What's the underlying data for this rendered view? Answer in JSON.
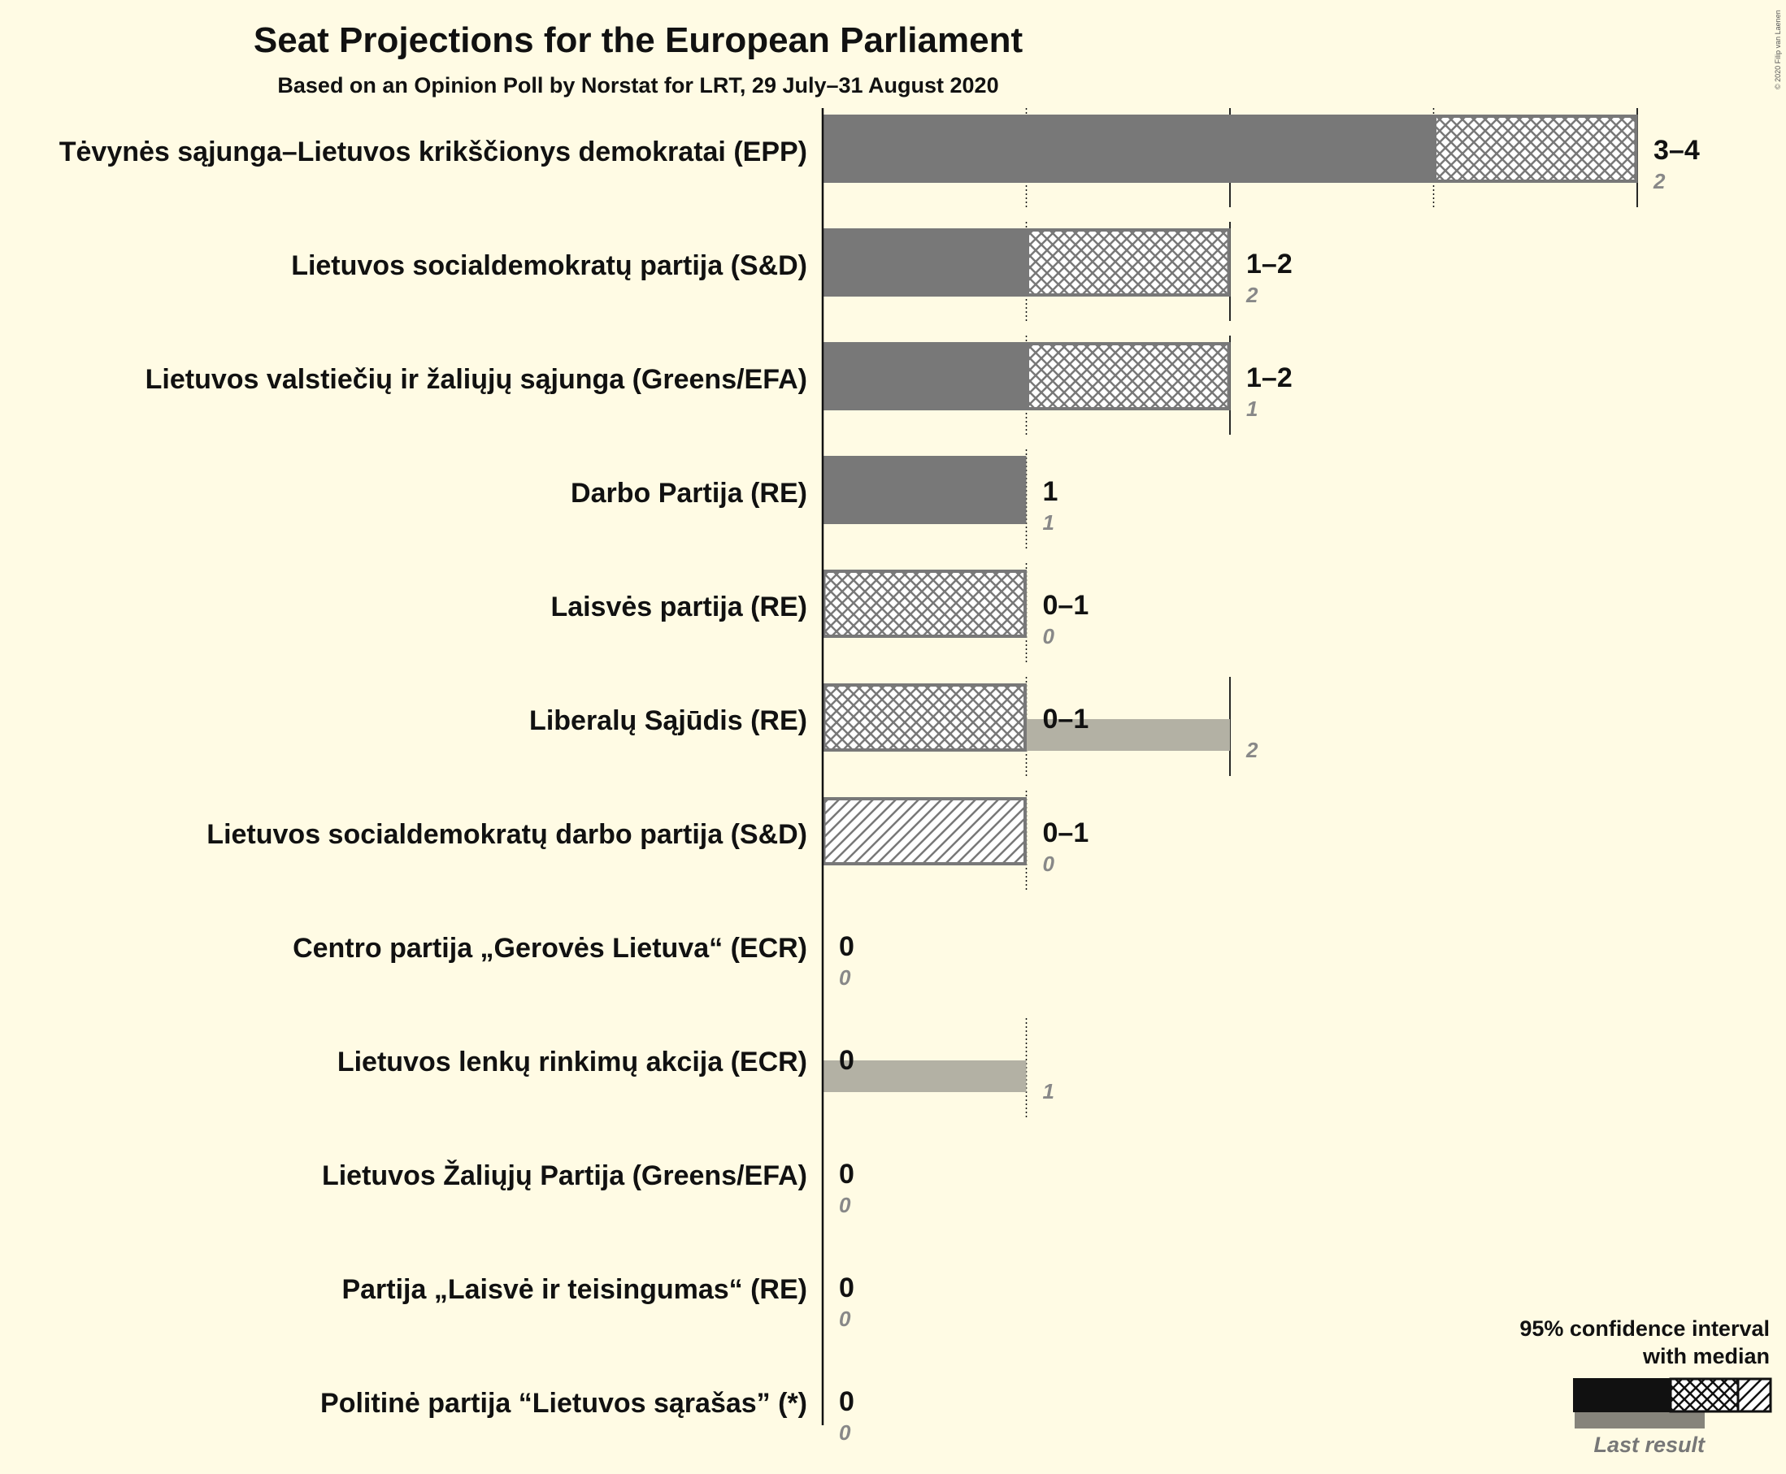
{
  "colors": {
    "background": "#fffbe4",
    "median_bar": "#787878",
    "hatch": "#787878",
    "last_result": "#b3b1a4",
    "legend_bar": "#111111",
    "legend_last": "#86847b"
  },
  "chart_data": {
    "type": "bar",
    "orientation": "horizontal",
    "title": "Seat Projections for the European Parliament",
    "subtitle": "Based on an Opinion Poll by Norstat for LRT, 29 July–31 August 2020",
    "credit": "© 2020 Filip van Laenen",
    "xlim": [
      0,
      4
    ],
    "gridlines": [
      1,
      2,
      3,
      4
    ],
    "series": [
      {
        "name": "Projection range"
      },
      {
        "name": "Last result"
      }
    ],
    "parties": [
      {
        "name": "Tėvynės sąjunga–Lietuvos krikščionys demokratai (EPP)",
        "low": 3,
        "median": 3,
        "high": 4,
        "range_label": "3–4",
        "last": 2,
        "last_label": "2"
      },
      {
        "name": "Lietuvos socialdemokratų partija (S&D)",
        "low": 1,
        "median": 1,
        "high": 2,
        "range_label": "1–2",
        "last": 2,
        "last_label": "2"
      },
      {
        "name": "Lietuvos valstiečių ir žaliųjų sąjunga (Greens/EFA)",
        "low": 1,
        "median": 1,
        "high": 2,
        "range_label": "1–2",
        "last": 1,
        "last_label": "1"
      },
      {
        "name": "Darbo Partija (RE)",
        "low": 1,
        "median": 1,
        "high": 1,
        "range_label": "1",
        "last": 1,
        "last_label": "1"
      },
      {
        "name": "Laisvės partija (RE)",
        "low": 0,
        "median": 0,
        "high": 1,
        "range_label": "0–1",
        "last": 0,
        "last_label": "0"
      },
      {
        "name": "Liberalų Sąjūdis (RE)",
        "low": 0,
        "median": 0,
        "high": 1,
        "range_label": "0–1",
        "last": 2,
        "last_label": "2"
      },
      {
        "name": "Lietuvos socialdemokratų darbo partija (S&D)",
        "low": 0,
        "median": 0,
        "high": 1,
        "upper_only": true,
        "range_label": "0–1",
        "last": 0,
        "last_label": "0"
      },
      {
        "name": "Centro partija „Gerovės Lietuva“ (ECR)",
        "low": 0,
        "median": 0,
        "high": 0,
        "range_label": "0",
        "last": 0,
        "last_label": "0"
      },
      {
        "name": "Lietuvos lenkų rinkimų akcija (ECR)",
        "low": 0,
        "median": 0,
        "high": 0,
        "range_label": "0",
        "last": 1,
        "last_label": "1"
      },
      {
        "name": "Lietuvos Žaliųjų Partija (Greens/EFA)",
        "low": 0,
        "median": 0,
        "high": 0,
        "range_label": "0",
        "last": 0,
        "last_label": "0"
      },
      {
        "name": "Partija „Laisvė ir teisingumas“ (RE)",
        "low": 0,
        "median": 0,
        "high": 0,
        "range_label": "0",
        "last": 0,
        "last_label": "0"
      },
      {
        "name": "Politinė partija “Lietuvos sąrašas” (*)",
        "low": 0,
        "median": 0,
        "high": 0,
        "range_label": "0",
        "last": 0,
        "last_label": "0"
      }
    ],
    "legend": {
      "title_line1": "95% confidence interval",
      "title_line2": "with median",
      "last_result": "Last result",
      "placement": "bottom-right"
    }
  }
}
